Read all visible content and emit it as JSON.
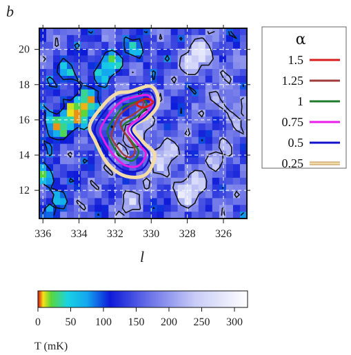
{
  "chart_data": [
    {
      "type": "heatmap",
      "title": "",
      "xlabel": "l",
      "ylabel": "b",
      "xlim": [
        336.2,
        324.7
      ],
      "ylim": [
        10.4,
        21.2
      ],
      "xticks": [
        336,
        334,
        332,
        330,
        328,
        326
      ],
      "yticks": [
        12,
        14,
        16,
        18,
        20
      ],
      "xtick_labels": [
        "336",
        "334",
        "332",
        "330",
        "328",
        "326"
      ],
      "ytick_labels": [
        "12",
        "14",
        "16",
        "18",
        "20"
      ],
      "grid": true,
      "legend": {
        "title": "α",
        "placement": "right",
        "entries": [
          {
            "label": "1.5",
            "color": "#d81c1c"
          },
          {
            "label": "1.25",
            "color": "#a03a3a"
          },
          {
            "label": "1",
            "color": "#1e7a2a"
          },
          {
            "label": "0.75",
            "color": "#e81de8"
          },
          {
            "label": "0.5",
            "color": "#1010cc"
          },
          {
            "label": "0.25",
            "color": "#f4dca8"
          }
        ]
      },
      "contours": [
        {
          "alpha": 0.25,
          "color": "#f4dca8",
          "points": [
            [
              331.2,
              17.6
            ],
            [
              330.0,
              17.9
            ],
            [
              329.6,
              17.0
            ],
            [
              330.1,
              16.2
            ],
            [
              331.0,
              15.6
            ],
            [
              330.4,
              14.7
            ],
            [
              329.8,
              14.0
            ],
            [
              330.3,
              12.9
            ],
            [
              331.4,
              12.8
            ],
            [
              332.4,
              13.5
            ],
            [
              333.1,
              14.8
            ],
            [
              333.4,
              15.7
            ],
            [
              332.6,
              16.9
            ],
            [
              331.9,
              17.5
            ]
          ]
        },
        {
          "alpha": 0.5,
          "color": "#1010cc",
          "points": [
            [
              331.3,
              17.4
            ],
            [
              330.1,
              17.6
            ],
            [
              329.8,
              16.9
            ],
            [
              330.3,
              16.2
            ],
            [
              331.1,
              15.5
            ],
            [
              330.6,
              14.7
            ],
            [
              330.1,
              14.0
            ],
            [
              330.5,
              13.2
            ],
            [
              331.4,
              13.1
            ],
            [
              332.2,
              13.7
            ],
            [
              332.9,
              14.8
            ],
            [
              333.1,
              15.6
            ],
            [
              332.4,
              16.7
            ],
            [
              331.8,
              17.2
            ]
          ]
        },
        {
          "alpha": 0.75,
          "color": "#e81de8",
          "points": [
            [
              331.3,
              17.2
            ],
            [
              330.2,
              17.4
            ],
            [
              330.0,
              16.8
            ],
            [
              330.5,
              16.2
            ],
            [
              331.3,
              15.5
            ],
            [
              330.8,
              14.7
            ],
            [
              330.3,
              14.1
            ],
            [
              330.7,
              13.4
            ],
            [
              331.4,
              13.4
            ],
            [
              332.0,
              13.9
            ],
            [
              332.6,
              14.8
            ],
            [
              332.8,
              15.5
            ],
            [
              332.2,
              16.5
            ],
            [
              331.7,
              17.0
            ]
          ]
        },
        {
          "alpha": 1,
          "color": "#1e7a2a",
          "points": [
            [
              331.2,
              16.9
            ],
            [
              330.4,
              17.1
            ],
            [
              330.3,
              16.7
            ],
            [
              330.8,
              16.2
            ],
            [
              331.6,
              15.6
            ],
            [
              331.1,
              14.8
            ],
            [
              330.7,
              14.2
            ],
            [
              331.0,
              13.7
            ],
            [
              331.5,
              13.8
            ],
            [
              331.9,
              14.2
            ],
            [
              332.3,
              14.9
            ],
            [
              332.4,
              15.5
            ],
            [
              331.9,
              16.3
            ],
            [
              331.6,
              16.7
            ]
          ]
        },
        {
          "alpha": 1.25,
          "color": "#a03a3a",
          "points": [
            [
              331.1,
              16.8
            ],
            [
              330.5,
              17.1
            ],
            [
              330.5,
              16.7
            ],
            [
              331.0,
              16.3
            ],
            [
              331.7,
              15.8
            ],
            [
              331.3,
              15.0
            ],
            [
              330.9,
              14.3
            ],
            [
              331.1,
              13.9
            ],
            [
              331.5,
              14.0
            ],
            [
              331.9,
              14.5
            ],
            [
              332.2,
              15.0
            ],
            [
              332.1,
              15.5
            ],
            [
              331.8,
              16.2
            ],
            [
              331.4,
              16.6
            ]
          ]
        },
        {
          "alpha": 1.5,
          "color": "#d81c1c",
          "points": [
            [
              330.3,
              17.2
            ],
            [
              329.9,
              17.0
            ],
            [
              330.4,
              16.7
            ],
            [
              330.8,
              16.9
            ]
          ]
        }
      ]
    },
    {
      "type": "colorbar",
      "xlabel": "T (mK)",
      "range": [
        0,
        320
      ],
      "ticks": [
        0,
        50,
        100,
        150,
        200,
        250,
        300
      ],
      "tick_labels": [
        "0",
        "50",
        "100",
        "150",
        "200",
        "250",
        "300"
      ],
      "stops": [
        {
          "value": 0,
          "color": "#d01010"
        },
        {
          "value": 8,
          "color": "#f7e21a"
        },
        {
          "value": 20,
          "color": "#5ad63a"
        },
        {
          "value": 45,
          "color": "#19d3e3"
        },
        {
          "value": 75,
          "color": "#13a6ef"
        },
        {
          "value": 110,
          "color": "#0d1ad8"
        },
        {
          "value": 170,
          "color": "#6a72e8"
        },
        {
          "value": 240,
          "color": "#c8ccf6"
        },
        {
          "value": 320,
          "color": "#ffffff"
        }
      ]
    }
  ]
}
